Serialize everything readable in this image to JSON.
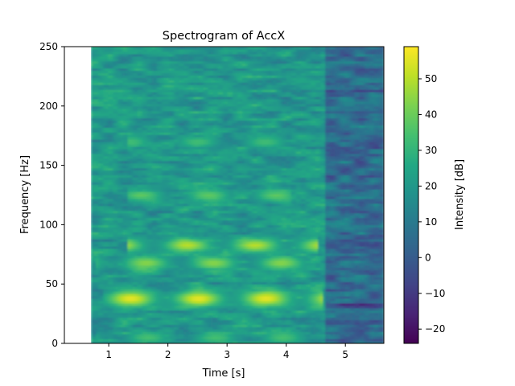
{
  "chart_data": {
    "type": "heatmap",
    "title": "Spectrogram of AccX",
    "xlabel": "Time [s]",
    "ylabel": "Frequency [Hz]",
    "xlim": [
      0.25,
      5.65
    ],
    "ylim": [
      0,
      250
    ],
    "x_ticks": [
      1,
      2,
      3,
      4,
      5
    ],
    "y_ticks": [
      0,
      50,
      100,
      150,
      200,
      250
    ],
    "data_extent": {
      "t_start": 0.7,
      "t_end": 5.65,
      "f_start": 0,
      "f_end": 250
    },
    "colorbar": {
      "label": "Intensity [dB]",
      "colormap": "viridis",
      "vmin": -24,
      "vmax": 59,
      "ticks": [
        -20,
        -10,
        0,
        10,
        20,
        30,
        40,
        50
      ]
    },
    "features": {
      "loud_until_s": 4.65,
      "active_level_db": 20,
      "quiet_level_db": 5,
      "bands": [
        {
          "freq_hz": 38,
          "width_hz": 7,
          "peak_db": 56,
          "t_from": 0.9,
          "t_to": 4.6
        },
        {
          "freq_hz": 83,
          "width_hz": 6,
          "peak_db": 50,
          "t_from": 1.3,
          "t_to": 4.55
        },
        {
          "freq_hz": 68,
          "width_hz": 6,
          "peak_db": 44,
          "t_from": 0.8,
          "t_to": 4.4
        },
        {
          "freq_hz": 125,
          "width_hz": 5,
          "peak_db": 38,
          "t_from": 1.3,
          "t_to": 4.1
        },
        {
          "freq_hz": 170,
          "width_hz": 5,
          "peak_db": 33,
          "t_from": 1.3,
          "t_to": 4.2
        },
        {
          "freq_hz": 5,
          "width_hz": 5,
          "peak_db": 34,
          "t_from": 0.8,
          "t_to": 4.5
        }
      ]
    }
  }
}
